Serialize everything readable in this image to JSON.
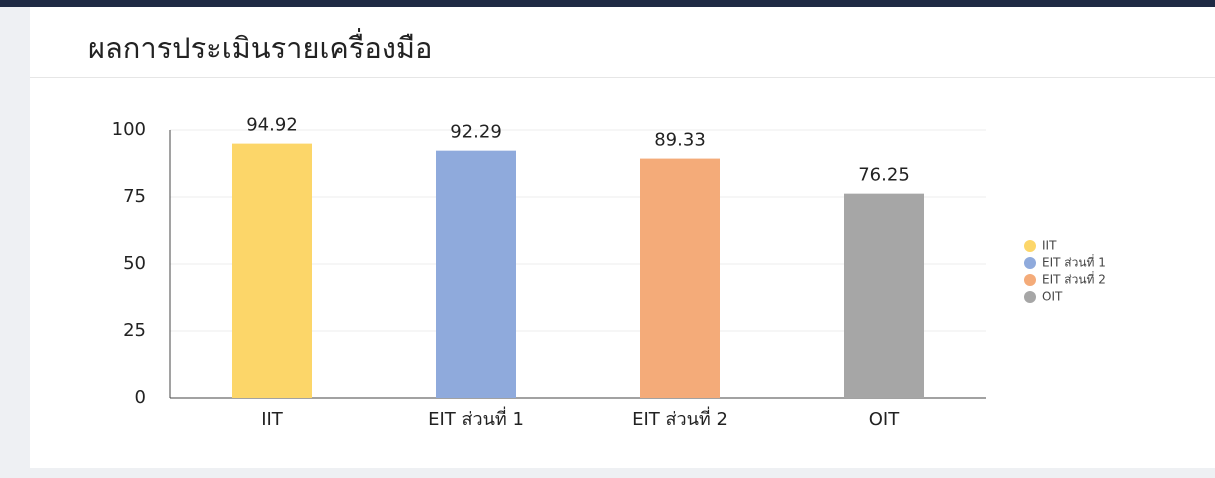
{
  "chart_data": {
    "type": "bar",
    "title": "ผลการประเมินรายเครื่องมือ",
    "categories": [
      "IIT",
      "EIT ส่วนที่ 1",
      "EIT ส่วนที่ 2",
      "OIT"
    ],
    "values": [
      94.92,
      92.29,
      89.33,
      76.25
    ],
    "colors": [
      "#fcd669",
      "#8faadc",
      "#f4ab79",
      "#a6a6a6"
    ],
    "ylim": [
      0,
      100
    ],
    "yticks": [
      0,
      25,
      50,
      75,
      100
    ],
    "grid": true,
    "legend": "right"
  }
}
